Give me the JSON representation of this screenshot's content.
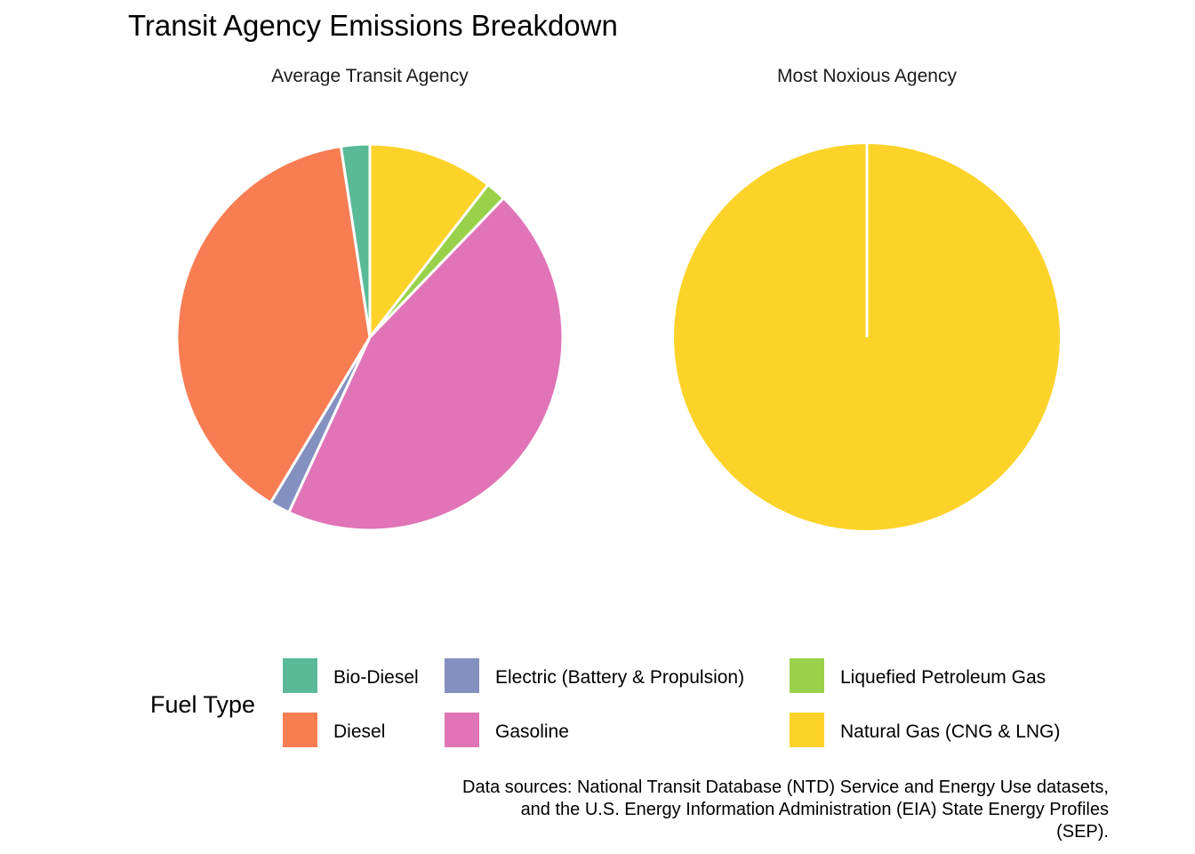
{
  "chart_data": {
    "type": "pie",
    "title": "Transit Agency Emissions Breakdown",
    "colors": {
      "Bio-Diesel": "#5ABA97",
      "Diesel": "#F87D53",
      "Electric (Battery & Propulsion)": "#8390C0",
      "Gasoline": "#E074B7",
      "Liquefied Petroleum Gas": "#99D14A",
      "Natural Gas (CNG & LNG)": "#FDD32A"
    },
    "facets": [
      {
        "title": "Average Transit Agency",
        "slices": [
          {
            "label": "Natural Gas (CNG & LNG)",
            "value": 10.5
          },
          {
            "label": "Liquefied Petroleum Gas",
            "value": 1.7
          },
          {
            "label": "Gasoline",
            "value": 44.7
          },
          {
            "label": "Electric (Battery & Propulsion)",
            "value": 1.7
          },
          {
            "label": "Diesel",
            "value": 39.0
          },
          {
            "label": "Bio-Diesel",
            "value": 2.4
          }
        ]
      },
      {
        "title": "Most Noxious Agency",
        "slices": [
          {
            "label": "Natural Gas (CNG & LNG)",
            "value": 100
          }
        ]
      }
    ],
    "legend": {
      "title": "Fuel Type",
      "position": "bottom",
      "items": [
        "Bio-Diesel",
        "Electric (Battery & Propulsion)",
        "Liquefied Petroleum Gas",
        "Diesel",
        "Gasoline",
        "Natural Gas (CNG & LNG)"
      ]
    },
    "caption": [
      "Data sources: National Transit Database (NTD) Service and Energy Use datasets,",
      "and the U.S. Energy Information Administration (EIA) State Energy Profiles",
      "(SEP)."
    ]
  }
}
